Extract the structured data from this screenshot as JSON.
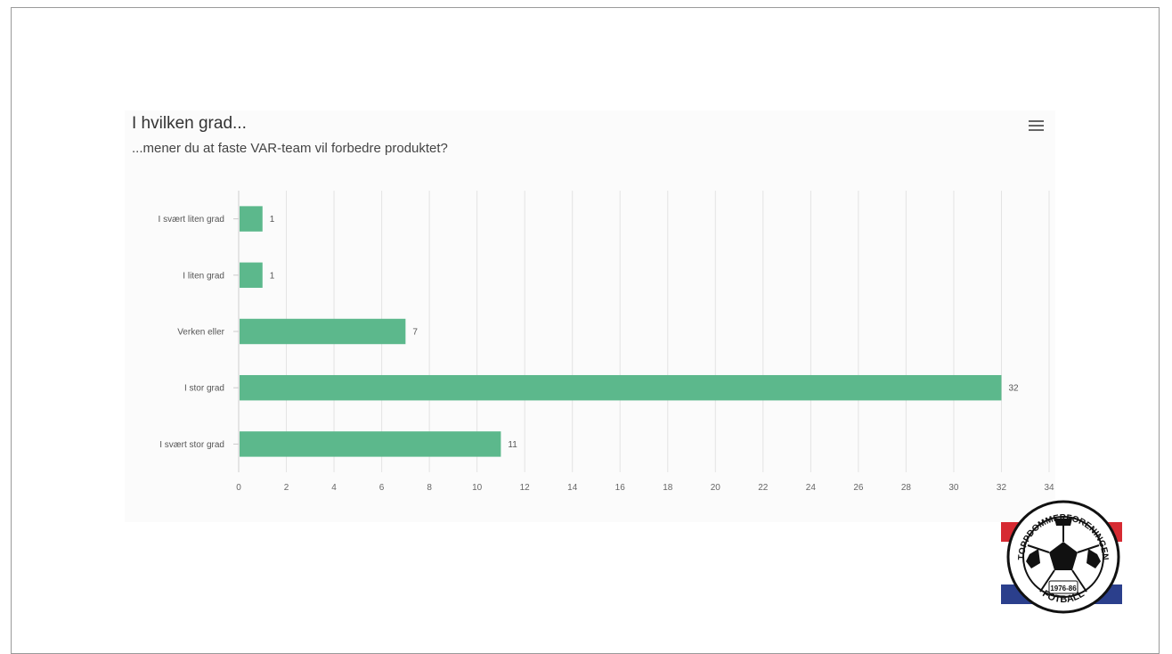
{
  "chart_data": {
    "type": "bar",
    "orientation": "horizontal",
    "title": "I hvilken grad...",
    "subtitle": "...mener du at faste VAR-team vil forbedre produktet?",
    "categories": [
      "I svært liten grad",
      "I liten grad",
      "Verken eller",
      "I stor grad",
      "I svært stor grad"
    ],
    "values": [
      1,
      1,
      7,
      32,
      11
    ],
    "xlim": [
      0,
      34
    ],
    "x_ticks": [
      0,
      2,
      4,
      6,
      8,
      10,
      12,
      14,
      16,
      18,
      20,
      22,
      24,
      26,
      28,
      30,
      32,
      34
    ],
    "grid": true,
    "bar_color": "#5cb88c",
    "data_labels": true
  },
  "menu": {
    "icon": "hamburger-menu-icon"
  },
  "logo": {
    "top_text": "TOPPDOMMERFORENINGEN",
    "bottom_text": "FOTBALL",
    "year_text": "1976-86",
    "colors": {
      "red": "#d62a32",
      "blue": "#2b3f8c",
      "white": "#ffffff",
      "black": "#111111"
    }
  }
}
